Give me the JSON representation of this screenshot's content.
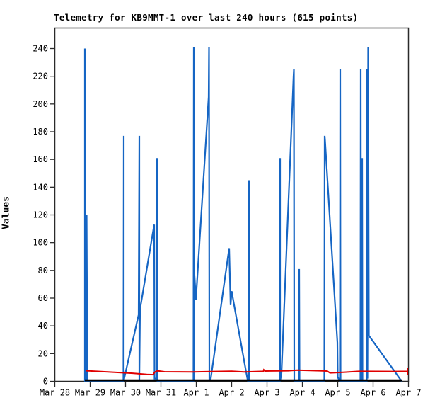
{
  "figure": {
    "title": "Telemetry for KB9MMT-1 over last 240 hours (615 points)",
    "ylabel": "Values"
  },
  "chart_data": {
    "type": "line",
    "title": "Telemetry for KB9MMT-1 over last 240 hours (615 points)",
    "xlabel": "",
    "ylabel": "Values",
    "grid": false,
    "legend": "none",
    "x_axis": {
      "unit": "days since Mar 28",
      "range": [
        0,
        10
      ],
      "tick_days": [
        0,
        1,
        2,
        3,
        4,
        5,
        6,
        7,
        8,
        9,
        10
      ],
      "tick_labels": [
        "Mar 28",
        "Mar 29",
        "Mar 30",
        "Mar 31",
        "Apr 1",
        "Apr 2",
        "Apr 3",
        "Apr 4",
        "Apr 5",
        "Apr 6",
        "Apr 7"
      ]
    },
    "y_axis": {
      "ticks": [
        0,
        20,
        40,
        60,
        80,
        100,
        120,
        140,
        160,
        180,
        200,
        220,
        240
      ],
      "range": [
        0,
        255
      ]
    },
    "colors": {
      "series_blue": "#1565c4",
      "series_red": "#e00000",
      "series_black": "#000000",
      "axis": "#2a2a2a"
    },
    "series": [
      {
        "name": "channel-1-blue",
        "color": "#1565c4",
        "width": 2.2,
        "points": [
          [
            0.85,
            0
          ],
          [
            0.85,
            240
          ],
          [
            0.86,
            0
          ],
          [
            0.9,
            0
          ],
          [
            0.9,
            120
          ],
          [
            0.92,
            0
          ],
          [
            1.94,
            0
          ],
          [
            1.95,
            177
          ],
          [
            1.95,
            0
          ],
          [
            1.97,
            3
          ],
          [
            2.37,
            48
          ],
          [
            2.39,
            177
          ],
          [
            2.39,
            1
          ],
          [
            2.41,
            52
          ],
          [
            2.81,
            113
          ],
          [
            2.82,
            2
          ],
          [
            2.88,
            2
          ],
          [
            2.89,
            161
          ],
          [
            2.9,
            0
          ],
          [
            3.92,
            0
          ],
          [
            3.93,
            241
          ],
          [
            3.93,
            0
          ],
          [
            3.95,
            76
          ],
          [
            3.99,
            59
          ],
          [
            4.35,
            205
          ],
          [
            4.36,
            241
          ],
          [
            4.37,
            1
          ],
          [
            4.41,
            2
          ],
          [
            4.93,
            96
          ],
          [
            4.97,
            55
          ],
          [
            5.0,
            65
          ],
          [
            5.4,
            8
          ],
          [
            5.46,
            0
          ],
          [
            5.48,
            0
          ],
          [
            5.49,
            145
          ],
          [
            5.5,
            0
          ],
          [
            6.36,
            0
          ],
          [
            6.37,
            161
          ],
          [
            6.37,
            0
          ],
          [
            6.41,
            6
          ],
          [
            6.75,
            220
          ],
          [
            6.76,
            225
          ],
          [
            6.77,
            0
          ],
          [
            6.9,
            0
          ],
          [
            6.91,
            81
          ],
          [
            6.92,
            0
          ],
          [
            7.62,
            0
          ],
          [
            7.63,
            177
          ],
          [
            7.64,
            174
          ],
          [
            7.99,
            28
          ],
          [
            8.0,
            3
          ],
          [
            8.06,
            0
          ],
          [
            8.07,
            225
          ],
          [
            8.08,
            0
          ],
          [
            8.64,
            0
          ],
          [
            8.65,
            225
          ],
          [
            8.66,
            0
          ],
          [
            8.68,
            0
          ],
          [
            8.69,
            161
          ],
          [
            8.7,
            0
          ],
          [
            8.82,
            0
          ],
          [
            8.83,
            225
          ],
          [
            8.84,
            2
          ],
          [
            8.86,
            241
          ],
          [
            8.88,
            33
          ],
          [
            9.81,
            0
          ]
        ]
      },
      {
        "name": "channel-2-red",
        "color": "#e00000",
        "width": 2,
        "points": [
          [
            0.89,
            7.6
          ],
          [
            1.5,
            6.8
          ],
          [
            2.2,
            5.8
          ],
          [
            2.6,
            5.0
          ],
          [
            2.78,
            4.8
          ],
          [
            2.82,
            6.5
          ],
          [
            2.9,
            7.6
          ],
          [
            3.1,
            6.9
          ],
          [
            3.9,
            6.8
          ],
          [
            4.4,
            7.0
          ],
          [
            5.0,
            7.3
          ],
          [
            5.35,
            6.8
          ],
          [
            5.9,
            7.2
          ],
          [
            5.91,
            8.3
          ],
          [
            5.95,
            7.4
          ],
          [
            6.6,
            7.6
          ],
          [
            6.85,
            8.0
          ],
          [
            7.5,
            7.6
          ],
          [
            7.7,
            7.4
          ],
          [
            7.78,
            6.1
          ],
          [
            8.2,
            6.6
          ],
          [
            8.6,
            7.2
          ],
          [
            9.6,
            7.1
          ],
          [
            9.97,
            7.2
          ],
          [
            9.97,
            9.6
          ],
          [
            9.97,
            4.8
          ]
        ]
      },
      {
        "name": "channel-3-black",
        "color": "#000000",
        "width": 2.6,
        "points": [
          [
            0.85,
            0.7
          ],
          [
            9.83,
            0.7
          ]
        ]
      }
    ]
  }
}
